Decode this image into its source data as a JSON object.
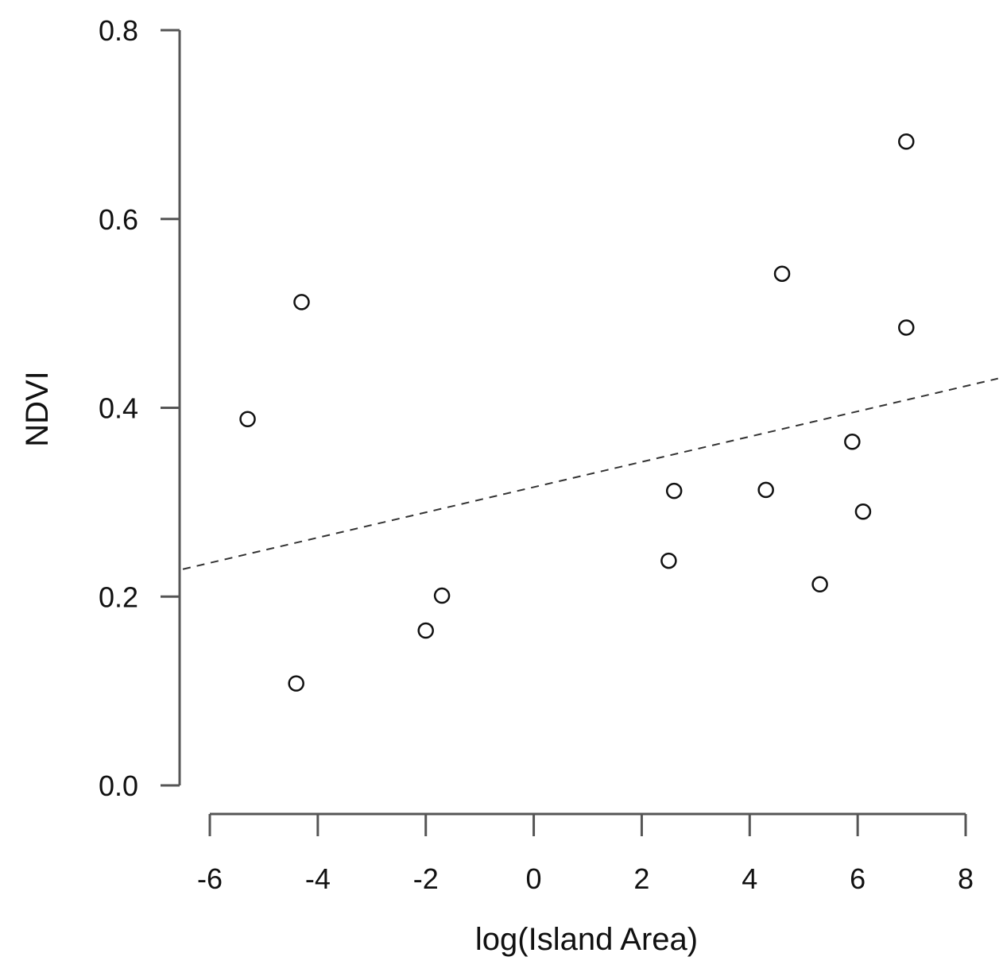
{
  "chart_data": {
    "type": "scatter",
    "xlabel": "log(Island Area)",
    "ylabel": "NDVI",
    "xlim": [
      -6,
      8
    ],
    "ylim": [
      0,
      0.8
    ],
    "x_ticks": [
      -6,
      -4,
      -2,
      0,
      2,
      4,
      6,
      8
    ],
    "x_tick_labels": [
      "-6",
      "-4",
      "-2",
      "0",
      "2",
      "4",
      "6",
      "8"
    ],
    "y_ticks": [
      0,
      0.2,
      0.4,
      0.6,
      0.8
    ],
    "y_tick_labels": [
      "0.0",
      "0.2",
      "0.4",
      "0.6",
      "0.8"
    ],
    "grid": false,
    "points": [
      {
        "x": -5.3,
        "y": 0.388
      },
      {
        "x": -4.3,
        "y": 0.512
      },
      {
        "x": -4.4,
        "y": 0.108
      },
      {
        "x": -2.0,
        "y": 0.164
      },
      {
        "x": -1.7,
        "y": 0.201
      },
      {
        "x": 2.6,
        "y": 0.312
      },
      {
        "x": 2.5,
        "y": 0.238
      },
      {
        "x": 4.3,
        "y": 0.313
      },
      {
        "x": 4.6,
        "y": 0.542
      },
      {
        "x": 5.3,
        "y": 0.213
      },
      {
        "x": 5.9,
        "y": 0.364
      },
      {
        "x": 6.1,
        "y": 0.29
      },
      {
        "x": 6.9,
        "y": 0.682
      },
      {
        "x": 6.9,
        "y": 0.485
      }
    ],
    "trend_line": {
      "style": "dashed",
      "points": [
        {
          "x": -6.5,
          "y": 0.229
        },
        {
          "x": 8.6,
          "y": 0.431
        }
      ]
    }
  }
}
